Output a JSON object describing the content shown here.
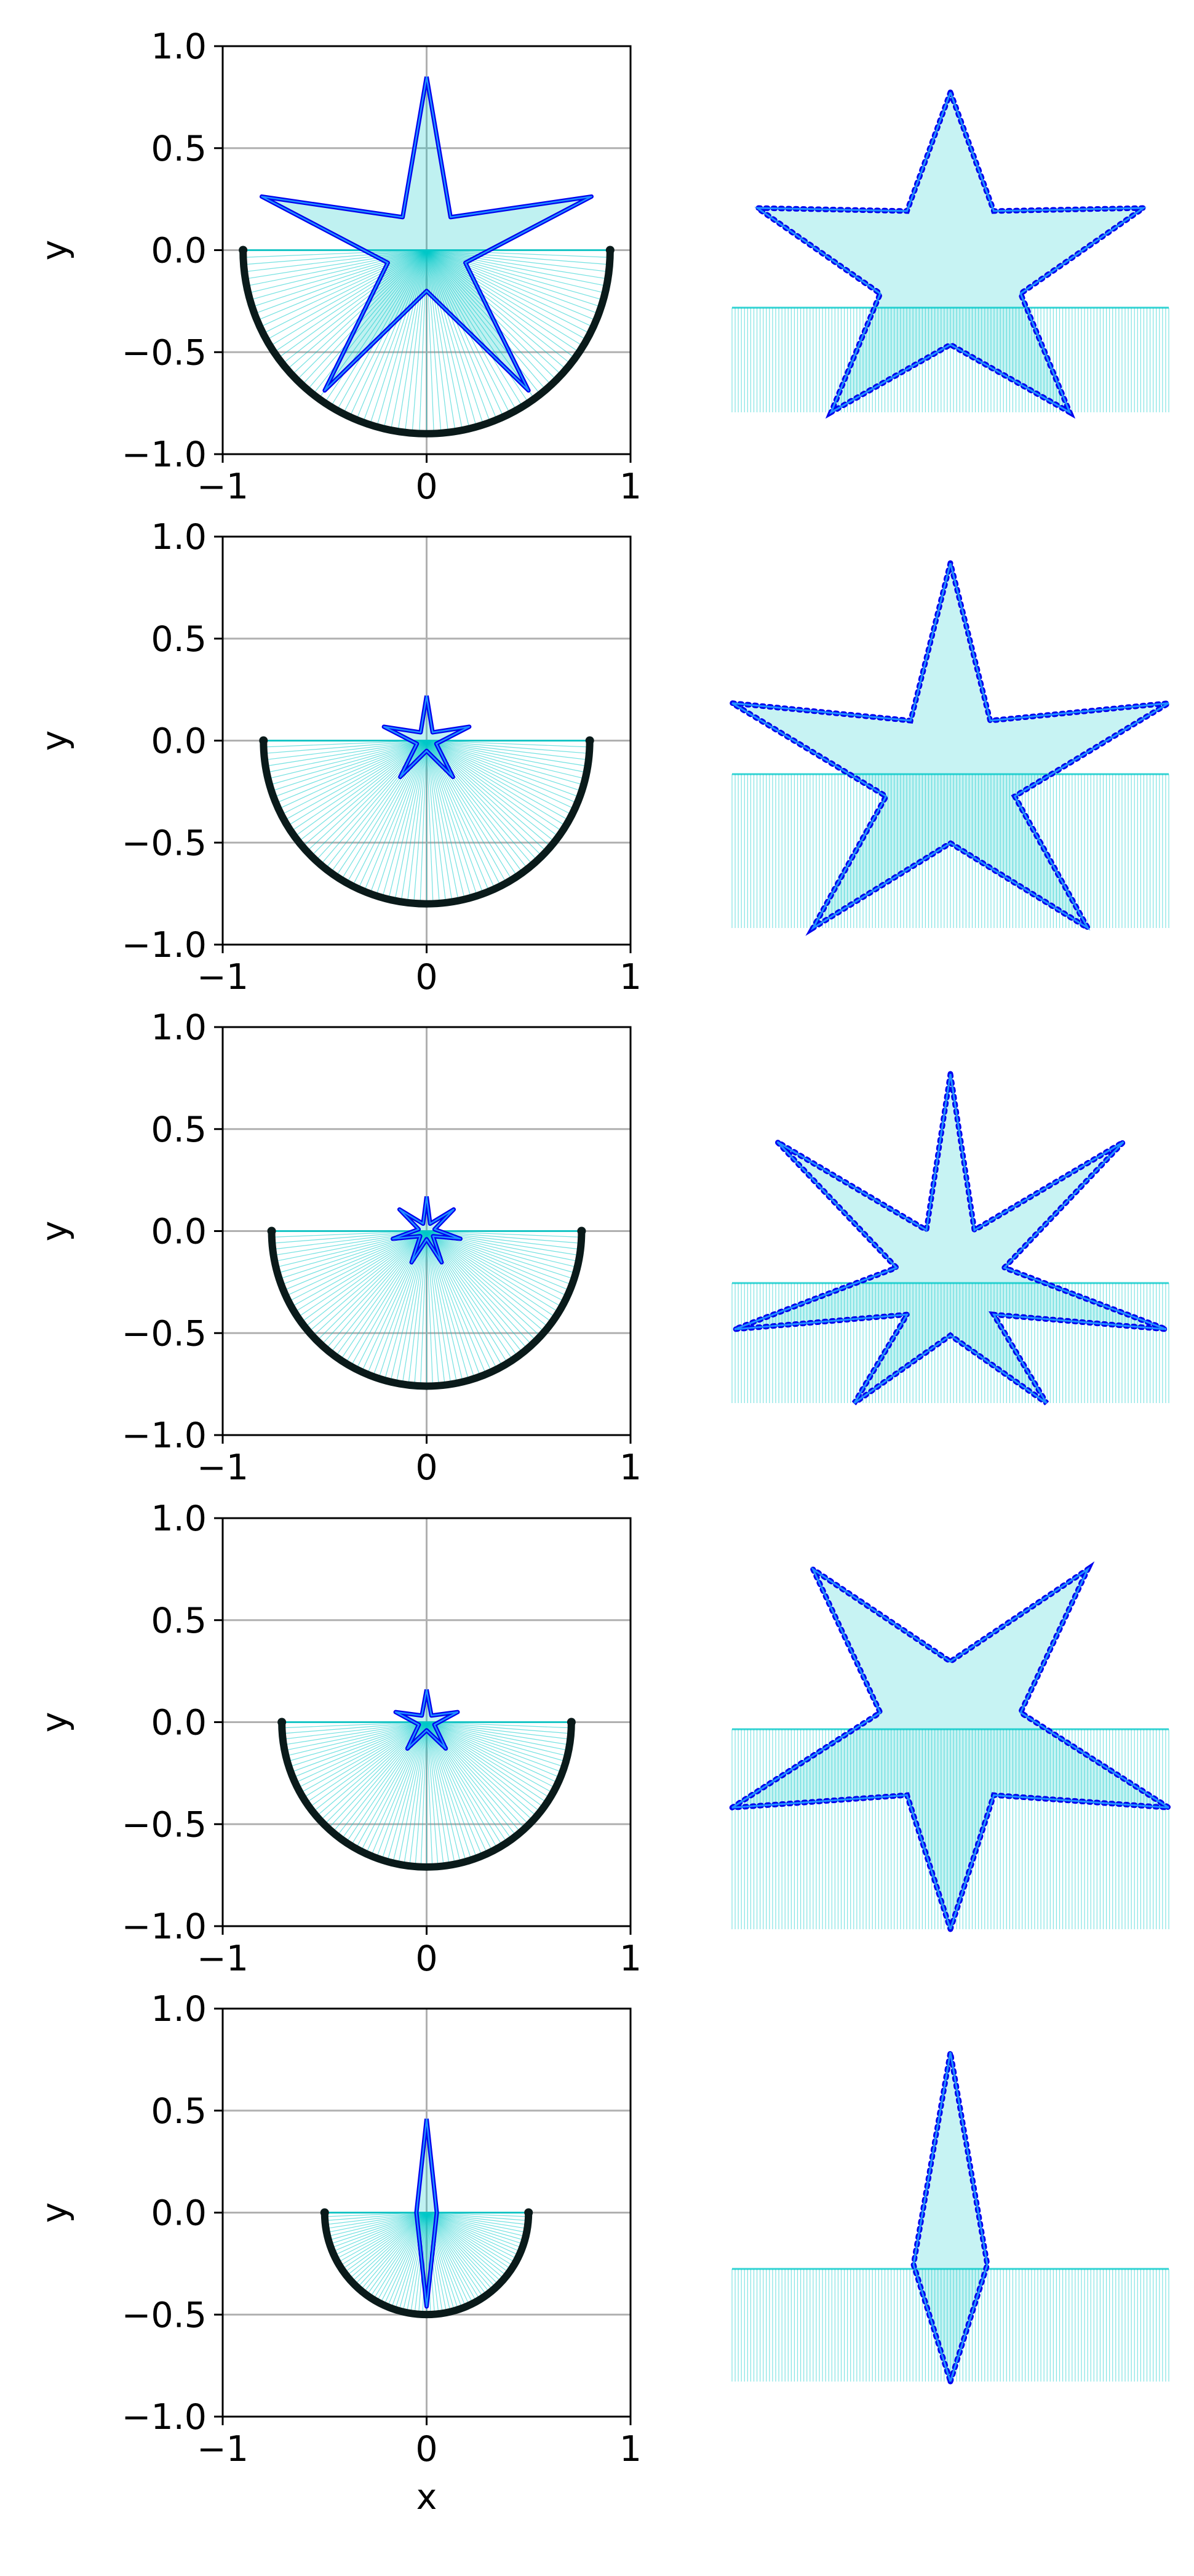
{
  "figure": {
    "layout": "5 rows x 2 columns; left column: axes with x/y ticks and grid; right column: zoomed views without axes",
    "colors": {
      "background": "#ffffff",
      "fill_lines": "#00c8c8",
      "star_curve": "#0000ee",
      "star_inner": "#1e90ff",
      "bowl_outline": "#0a1a1a",
      "grid": "#b0b0b0"
    }
  },
  "chart_data": [
    {
      "type": "line",
      "panel": "row-1-left",
      "xlabel": "",
      "ylabel": "y",
      "xlim": [
        -1,
        1
      ],
      "ylim": [
        -1,
        1
      ],
      "xticks": [
        -1,
        0,
        1
      ],
      "yticks": [
        1.0,
        0.5,
        0.0,
        -0.5,
        -1.0
      ],
      "xtick_labels": [
        "−1",
        "0",
        "1"
      ],
      "ytick_labels": [
        "1.0",
        "0.5",
        "0.0",
        "−0.5",
        "−1.0"
      ],
      "grid": true,
      "bowl_radius": 0.9,
      "star_tip_y": 0.87,
      "star_inner_radius": 0.2,
      "star_outer_radius": 0.85,
      "star_arms": 5
    },
    {
      "type": "line",
      "panel": "row-2-left",
      "xlabel": "",
      "ylabel": "y",
      "xlim": [
        -1,
        1
      ],
      "ylim": [
        -1,
        1
      ],
      "xticks": [
        -1,
        0,
        1
      ],
      "yticks": [
        1.0,
        0.5,
        0.0,
        -0.5,
        -1.0
      ],
      "xtick_labels": [
        "−1",
        "0",
        "1"
      ],
      "ytick_labels": [
        "1.0",
        "0.5",
        "0.0",
        "−0.5",
        "−1.0"
      ],
      "grid": true,
      "bowl_radius": 0.8,
      "star_tip_y": 0.22,
      "star_inner_radius": 0.05,
      "star_outer_radius": 0.22,
      "star_arms": 5
    },
    {
      "type": "line",
      "panel": "row-3-left",
      "xlabel": "",
      "ylabel": "y",
      "xlim": [
        -1,
        1
      ],
      "ylim": [
        -1,
        1
      ],
      "xticks": [
        -1,
        0,
        1
      ],
      "yticks": [
        1.0,
        0.5,
        0.0,
        -0.5,
        -1.0
      ],
      "xtick_labels": [
        "−1",
        "0",
        "1"
      ],
      "ytick_labels": [
        "1.0",
        "0.5",
        "0.0",
        "−0.5",
        "−1.0"
      ],
      "grid": true,
      "bowl_radius": 0.76,
      "star_tip_y": 0.17,
      "star_inner_radius": 0.04,
      "star_outer_radius": 0.17,
      "star_arms": 7
    },
    {
      "type": "line",
      "panel": "row-4-left",
      "xlabel": "",
      "ylabel": "y",
      "xlim": [
        -1,
        1
      ],
      "ylim": [
        -1,
        1
      ],
      "xticks": [
        -1,
        0,
        1
      ],
      "yticks": [
        1.0,
        0.5,
        0.0,
        -0.5,
        -1.0
      ],
      "xtick_labels": [
        "−1",
        "0",
        "1"
      ],
      "ytick_labels": [
        "1.0",
        "0.5",
        "0.0",
        "−0.5",
        "−1.0"
      ],
      "grid": true,
      "bowl_radius": 0.71,
      "star_tip_y": 0.14,
      "star_inner_radius": 0.04,
      "star_outer_radius": 0.16,
      "star_arms": 5
    },
    {
      "type": "line",
      "panel": "row-5-left",
      "xlabel": "x",
      "ylabel": "y",
      "xlim": [
        -1,
        1
      ],
      "ylim": [
        -1,
        1
      ],
      "xticks": [
        -1,
        0,
        1
      ],
      "yticks": [
        1.0,
        0.5,
        0.0,
        -0.5,
        -1.0
      ],
      "xtick_labels": [
        "−1",
        "0",
        "1"
      ],
      "ytick_labels": [
        "1.0",
        "0.5",
        "0.0",
        "−0.5",
        "−1.0"
      ],
      "grid": true,
      "bowl_radius": 0.5,
      "star_tip_y": 0.33,
      "star_inner_radius": 0.05,
      "star_outer_radius": 0.46,
      "star_arms": 2
    }
  ]
}
